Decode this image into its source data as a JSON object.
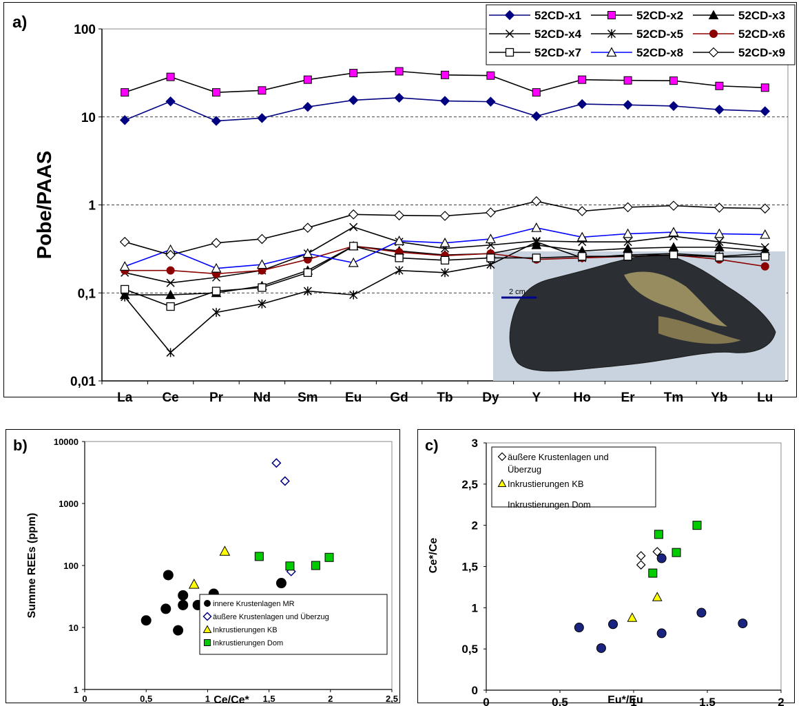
{
  "colors": {
    "navy": "#000080",
    "magenta": "#ff00ff",
    "red_brown": "#8b0000",
    "blue": "#0000ff",
    "green": "#00cc00",
    "yellow": "#ffff00",
    "black": "#000000"
  },
  "photo": {
    "scale_label": "2 cm"
  },
  "chart_data": [
    {
      "type": "line",
      "panel_label": "a)",
      "ylabel": "Pobe/PAAS",
      "xlabel": "",
      "y_scale": "log",
      "ylim": [
        0.01,
        100
      ],
      "y_ticks": [
        "0,01",
        "0,1",
        "1",
        "10",
        "100"
      ],
      "grid": "dashed horizontal at 0,1 / 10",
      "legend_position": "top-right",
      "categories": [
        "La",
        "Ce",
        "Pr",
        "Nd",
        "Sm",
        "Eu",
        "Gd",
        "Tb",
        "Dy",
        "Y",
        "Ho",
        "Er",
        "Tm",
        "Yb",
        "Lu"
      ],
      "series": [
        {
          "name": "52CD-x1",
          "color": "#000080",
          "marker": "diamond-filled",
          "values": [
            9.2,
            15,
            9,
            9.7,
            13,
            15.5,
            16.5,
            15.2,
            14.9,
            10.2,
            14,
            13.7,
            13.3,
            12.1,
            11.6
          ]
        },
        {
          "name": "52CD-x2",
          "color": "#000000",
          "marker": "square-magenta",
          "values": [
            19,
            28.5,
            19,
            20,
            26.5,
            31.5,
            33,
            30,
            29.5,
            19,
            26.5,
            26,
            25.8,
            22.5,
            21.5
          ]
        },
        {
          "name": "52CD-x3",
          "color": "#000000",
          "marker": "triangle-filled",
          "values": [
            0.095,
            0.095,
            0.1,
            0.12,
            0.18,
            0.34,
            0.3,
            0.27,
            0.28,
            0.35,
            0.3,
            0.32,
            0.33,
            0.33,
            0.3
          ]
        },
        {
          "name": "52CD-x4",
          "color": "#000000",
          "marker": "x",
          "values": [
            0.17,
            0.13,
            0.15,
            0.18,
            0.28,
            0.56,
            0.38,
            0.32,
            0.35,
            0.39,
            0.38,
            0.38,
            0.44,
            0.38,
            0.33
          ]
        },
        {
          "name": "52CD-x5",
          "color": "#000000",
          "marker": "star",
          "values": [
            0.09,
            0.021,
            0.06,
            0.075,
            0.105,
            0.095,
            0.18,
            0.17,
            0.21,
            0.38,
            0.25,
            0.27,
            0.28,
            0.26,
            0.28
          ]
        },
        {
          "name": "52CD-x6",
          "color": "#8b0000",
          "marker": "circle-filled",
          "values": [
            0.18,
            0.18,
            0.165,
            0.18,
            0.24,
            0.34,
            0.29,
            0.265,
            0.28,
            0.24,
            0.25,
            0.26,
            0.27,
            0.24,
            0.2
          ]
        },
        {
          "name": "52CD-x7",
          "color": "#000000",
          "marker": "square-open",
          "values": [
            0.11,
            0.07,
            0.105,
            0.115,
            0.17,
            0.34,
            0.25,
            0.235,
            0.25,
            0.25,
            0.26,
            0.26,
            0.27,
            0.255,
            0.26
          ]
        },
        {
          "name": "52CD-x8",
          "color": "#0000ff",
          "marker": "triangle-open",
          "values": [
            0.2,
            0.31,
            0.19,
            0.21,
            0.28,
            0.22,
            0.39,
            0.37,
            0.41,
            0.55,
            0.43,
            0.47,
            0.49,
            0.47,
            0.46
          ]
        },
        {
          "name": "52CD-x9",
          "color": "#000000",
          "marker": "diamond-open",
          "values": [
            0.38,
            0.27,
            0.37,
            0.41,
            0.55,
            0.78,
            0.76,
            0.75,
            0.82,
            1.1,
            0.85,
            0.94,
            0.98,
            0.93,
            0.91
          ]
        }
      ]
    },
    {
      "type": "scatter",
      "panel_label": "b)",
      "xlabel": "Ce/Ce*",
      "ylabel": "Summe REEs (ppm)",
      "xlim": [
        0,
        2.5
      ],
      "x_ticks": [
        "0",
        "0,5",
        "1",
        "1,5",
        "2",
        "2,5"
      ],
      "y_scale": "log",
      "ylim": [
        1,
        10000
      ],
      "y_ticks": [
        "1",
        "10",
        "100",
        "1000",
        "10000"
      ],
      "legend_position": "bottom-right",
      "series": [
        {
          "name": "innere Krustenlagen MR",
          "marker": "circle-black",
          "points": [
            [
              0.5,
              13
            ],
            [
              0.66,
              20
            ],
            [
              0.68,
              70
            ],
            [
              0.76,
              9
            ],
            [
              0.8,
              23
            ],
            [
              0.8,
              33
            ],
            [
              0.92,
              23
            ],
            [
              1.05,
              35
            ],
            [
              1.6,
              52
            ]
          ]
        },
        {
          "name": "äußere Krustenlagen und Überzug",
          "marker": "diamond-open-navy",
          "points": [
            [
              1.56,
              4500
            ],
            [
              1.63,
              2300
            ],
            [
              1.68,
              80
            ]
          ]
        },
        {
          "name": "Inkrustierungen KB",
          "marker": "triangle-yellow",
          "points": [
            [
              0.89,
              50
            ],
            [
              1.14,
              170
            ]
          ]
        },
        {
          "name": "Inkrustierungen Dom",
          "marker": "square-green",
          "points": [
            [
              1.42,
              140
            ],
            [
              1.67,
              98
            ],
            [
              1.88,
              100
            ],
            [
              1.99,
              135
            ]
          ]
        }
      ]
    },
    {
      "type": "scatter",
      "panel_label": "c)",
      "xlabel": "Eu*/Eu",
      "ylabel": "Ce*/Ce",
      "xlim": [
        0,
        2
      ],
      "x_ticks": [
        "0",
        "0,5",
        "1",
        "1,5",
        "2"
      ],
      "ylim": [
        0,
        3
      ],
      "y_ticks": [
        "0",
        "0,5",
        "1",
        "1,5",
        "2",
        "2,5",
        "3"
      ],
      "legend_position": "top-left",
      "legend_cut_text": "Inkrustierungen Dom",
      "series": [
        {
          "name": "äußere Krustenlagen und Überzug",
          "marker": "diamond-open",
          "points": [
            [
              1.05,
              1.63
            ],
            [
              1.05,
              1.52
            ],
            [
              1.16,
              1.68
            ]
          ]
        },
        {
          "name": "Inkrustierungen KB",
          "marker": "triangle-yellow",
          "points": [
            [
              0.99,
              0.88
            ],
            [
              1.16,
              1.13
            ]
          ]
        },
        {
          "name": "Inkrustierungen Dom",
          "marker": "square-green",
          "points": [
            [
              1.13,
              1.42
            ],
            [
              1.17,
              1.89
            ],
            [
              1.29,
              1.67
            ],
            [
              1.43,
              2.0
            ]
          ]
        },
        {
          "name": "",
          "marker": "circle-navy",
          "points": [
            [
              0.63,
              0.76
            ],
            [
              0.78,
              0.51
            ],
            [
              0.86,
              0.8
            ],
            [
              1.19,
              0.69
            ],
            [
              1.19,
              1.6
            ],
            [
              1.46,
              0.94
            ],
            [
              1.74,
              0.81
            ]
          ]
        }
      ]
    }
  ]
}
